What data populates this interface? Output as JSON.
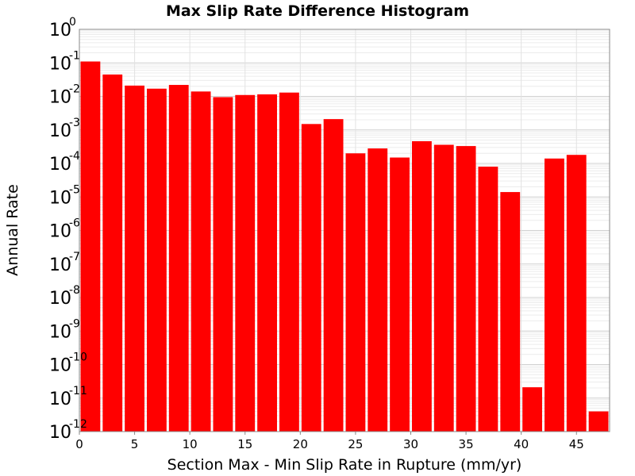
{
  "chart_data": {
    "type": "bar",
    "title": "Max Slip Rate Difference Histogram",
    "xlabel": "Section Max - Min Slip Rate in Rupture (mm/yr)",
    "ylabel": "Annual Rate",
    "y_scale": "log",
    "ylim": [
      1e-12,
      1
    ],
    "xlim": [
      0,
      48
    ],
    "bin_width": 2,
    "grid": true,
    "bar_color": "#ff0000",
    "x": [
      1,
      3,
      5,
      7,
      9,
      11,
      13,
      15,
      17,
      19,
      21,
      23,
      25,
      27,
      29,
      31,
      33,
      35,
      37,
      39,
      41,
      43,
      45,
      47
    ],
    "values": [
      0.11,
      0.045,
      0.021,
      0.017,
      0.022,
      0.014,
      0.0095,
      0.011,
      0.0115,
      0.013,
      0.0015,
      0.0021,
      0.0002,
      0.00028,
      0.00015,
      0.00046,
      0.00036,
      0.00033,
      8e-05,
      1.4e-05,
      2.1e-11,
      0.00014,
      0.00018,
      4e-12
    ],
    "x_ticks": [
      "0",
      "5",
      "10",
      "15",
      "20",
      "25",
      "30",
      "35",
      "40",
      "45"
    ],
    "y_ticks": [
      {
        "base": "10",
        "exp": "0"
      },
      {
        "base": "10",
        "exp": "-1"
      },
      {
        "base": "10",
        "exp": "-2"
      },
      {
        "base": "10",
        "exp": "-3"
      },
      {
        "base": "10",
        "exp": "-4"
      },
      {
        "base": "10",
        "exp": "-5"
      },
      {
        "base": "10",
        "exp": "-6"
      },
      {
        "base": "10",
        "exp": "-7"
      },
      {
        "base": "10",
        "exp": "-8"
      },
      {
        "base": "10",
        "exp": "-9"
      },
      {
        "base": "10",
        "exp": "-10"
      },
      {
        "base": "10",
        "exp": "-11"
      },
      {
        "base": "10",
        "exp": "-12"
      }
    ]
  }
}
